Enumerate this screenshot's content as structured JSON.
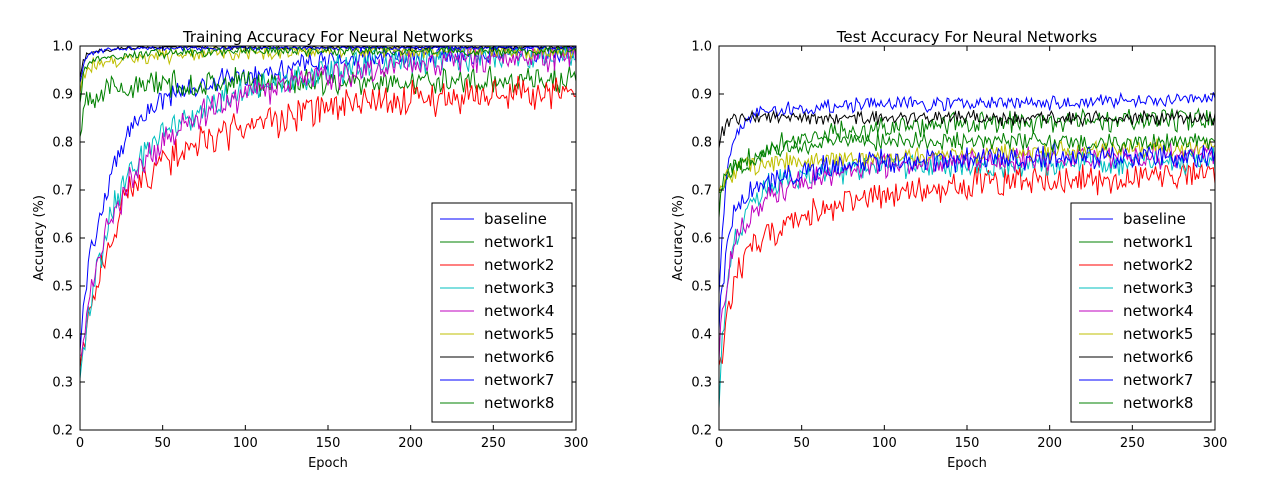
{
  "chart_data": [
    {
      "type": "line",
      "title": "Training Accuracy For Neural Networks",
      "xlabel": "Epoch",
      "ylabel": "Accuracy (%)",
      "xlim": [
        0,
        300
      ],
      "ylim": [
        0.2,
        1.0
      ],
      "xticks": [
        "0",
        "50",
        "100",
        "150",
        "200",
        "250",
        "300"
      ],
      "yticks": [
        "0.2",
        "0.3",
        "0.4",
        "0.5",
        "0.6",
        "0.7",
        "0.8",
        "0.9",
        "1.0"
      ],
      "grid": false,
      "legend_position": "lower-right",
      "x": [
        0,
        2,
        5,
        10,
        20,
        30,
        50,
        75,
        100,
        150,
        200,
        250,
        300
      ],
      "series": [
        {
          "name": "baseline",
          "color": "#0000ff",
          "noise": 0.018,
          "values": [
            0.36,
            0.45,
            0.55,
            0.62,
            0.74,
            0.83,
            0.89,
            0.92,
            0.94,
            0.97,
            0.98,
            0.985,
            0.99
          ]
        },
        {
          "name": "network1",
          "color": "#008000",
          "noise": 0.022,
          "values": [
            0.8,
            0.88,
            0.9,
            0.9,
            0.91,
            0.915,
            0.92,
            0.92,
            0.925,
            0.925,
            0.925,
            0.93,
            0.93
          ]
        },
        {
          "name": "network2",
          "color": "#ff0000",
          "noise": 0.028,
          "values": [
            0.33,
            0.37,
            0.42,
            0.5,
            0.62,
            0.7,
            0.76,
            0.8,
            0.83,
            0.87,
            0.89,
            0.9,
            0.91
          ]
        },
        {
          "name": "network3",
          "color": "#00bfbf",
          "noise": 0.025,
          "values": [
            0.3,
            0.36,
            0.44,
            0.53,
            0.66,
            0.74,
            0.82,
            0.87,
            0.91,
            0.95,
            0.97,
            0.98,
            0.98
          ]
        },
        {
          "name": "network4",
          "color": "#bf00bf",
          "noise": 0.025,
          "values": [
            0.34,
            0.4,
            0.47,
            0.55,
            0.65,
            0.72,
            0.8,
            0.86,
            0.9,
            0.94,
            0.96,
            0.975,
            0.98
          ]
        },
        {
          "name": "network5",
          "color": "#bfbf00",
          "noise": 0.012,
          "values": [
            0.9,
            0.94,
            0.96,
            0.965,
            0.97,
            0.975,
            0.98,
            0.985,
            0.985,
            0.99,
            0.99,
            0.99,
            0.99
          ]
        },
        {
          "name": "network6",
          "color": "#000000",
          "noise": 0.004,
          "values": [
            0.93,
            0.97,
            0.985,
            0.99,
            0.995,
            0.997,
            0.998,
            0.998,
            0.998,
            0.998,
            0.998,
            0.998,
            0.998
          ]
        },
        {
          "name": "network7",
          "color": "#0000ff",
          "noise": 0.004,
          "values": [
            0.92,
            0.96,
            0.98,
            0.99,
            0.993,
            0.995,
            0.996,
            0.996,
            0.996,
            0.996,
            0.996,
            0.996,
            0.996
          ]
        },
        {
          "name": "network8",
          "color": "#008000",
          "noise": 0.008,
          "values": [
            0.88,
            0.94,
            0.96,
            0.97,
            0.975,
            0.98,
            0.985,
            0.985,
            0.99,
            0.99,
            0.99,
            0.99,
            0.99
          ]
        }
      ]
    },
    {
      "type": "line",
      "title": "Test Accuracy For Neural Networks",
      "xlabel": "Epoch",
      "ylabel": "Accuracy (%)",
      "xlim": [
        0,
        300
      ],
      "ylim": [
        0.2,
        1.0
      ],
      "xticks": [
        "0",
        "50",
        "100",
        "150",
        "200",
        "250",
        "300"
      ],
      "yticks": [
        "0.2",
        "0.3",
        "0.4",
        "0.5",
        "0.6",
        "0.7",
        "0.8",
        "0.9",
        "1.0"
      ],
      "grid": false,
      "legend_position": "lower-right",
      "x": [
        0,
        2,
        5,
        10,
        20,
        30,
        50,
        75,
        100,
        150,
        200,
        250,
        300
      ],
      "series": [
        {
          "name": "baseline",
          "color": "#0000ff",
          "noise": 0.012,
          "values": [
            0.5,
            0.6,
            0.75,
            0.82,
            0.86,
            0.865,
            0.87,
            0.875,
            0.88,
            0.88,
            0.88,
            0.885,
            0.89
          ]
        },
        {
          "name": "network1",
          "color": "#008000",
          "noise": 0.018,
          "values": [
            0.66,
            0.7,
            0.72,
            0.74,
            0.77,
            0.79,
            0.81,
            0.82,
            0.83,
            0.84,
            0.84,
            0.845,
            0.85
          ]
        },
        {
          "name": "network2",
          "color": "#ff0000",
          "noise": 0.025,
          "values": [
            0.35,
            0.36,
            0.45,
            0.52,
            0.58,
            0.61,
            0.64,
            0.67,
            0.69,
            0.71,
            0.72,
            0.725,
            0.73
          ]
        },
        {
          "name": "network3",
          "color": "#00bfbf",
          "noise": 0.02,
          "values": [
            0.27,
            0.38,
            0.5,
            0.6,
            0.68,
            0.71,
            0.73,
            0.74,
            0.75,
            0.75,
            0.755,
            0.76,
            0.76
          ]
        },
        {
          "name": "network4",
          "color": "#bf00bf",
          "noise": 0.02,
          "values": [
            0.36,
            0.45,
            0.52,
            0.59,
            0.65,
            0.69,
            0.72,
            0.74,
            0.75,
            0.76,
            0.765,
            0.77,
            0.77
          ]
        },
        {
          "name": "network5",
          "color": "#bfbf00",
          "noise": 0.015,
          "values": [
            0.7,
            0.72,
            0.73,
            0.74,
            0.75,
            0.755,
            0.76,
            0.765,
            0.77,
            0.775,
            0.78,
            0.785,
            0.79
          ]
        },
        {
          "name": "network6",
          "color": "#000000",
          "noise": 0.012,
          "values": [
            0.8,
            0.82,
            0.84,
            0.845,
            0.85,
            0.85,
            0.85,
            0.85,
            0.85,
            0.85,
            0.85,
            0.85,
            0.85
          ]
        },
        {
          "name": "network7",
          "color": "#0000ff",
          "noise": 0.02,
          "values": [
            0.42,
            0.5,
            0.6,
            0.66,
            0.7,
            0.72,
            0.74,
            0.75,
            0.76,
            0.765,
            0.77,
            0.77,
            0.77
          ]
        },
        {
          "name": "network8",
          "color": "#008000",
          "noise": 0.015,
          "values": [
            0.7,
            0.72,
            0.74,
            0.75,
            0.77,
            0.78,
            0.79,
            0.8,
            0.8,
            0.8,
            0.8,
            0.8,
            0.8
          ]
        }
      ]
    }
  ]
}
